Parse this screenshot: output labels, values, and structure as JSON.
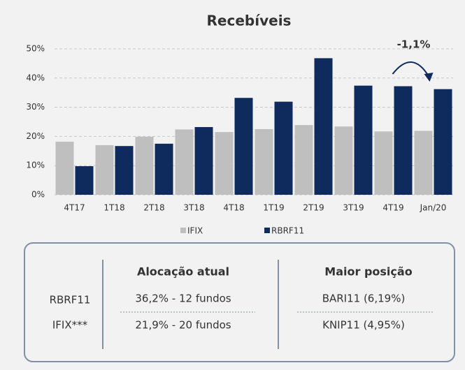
{
  "chart_data": {
    "type": "bar",
    "title": "Recebíveis",
    "categories": [
      "4T17",
      "1T18",
      "2T18",
      "3T18",
      "4T18",
      "1T19",
      "2T19",
      "3T19",
      "4T19",
      "Jan/20"
    ],
    "series": [
      {
        "name": "IFIX",
        "color": "#bfbfbf",
        "values": [
          18.2,
          17,
          19.9,
          22.4,
          21.5,
          22.5,
          23.9,
          23.4,
          21.7,
          21.9
        ]
      },
      {
        "name": "RBRF11",
        "color": "#0f2a5c",
        "values": [
          9.8,
          16.7,
          17.5,
          23.2,
          33.2,
          31.9,
          46.8,
          37.4,
          37.2,
          36.2
        ]
      }
    ],
    "ylim": [
      0,
      50
    ],
    "yticks": [
      {
        "value": 0,
        "label": "0%"
      },
      {
        "value": 10,
        "label": "10%"
      },
      {
        "value": 20,
        "label": "20%"
      },
      {
        "value": 30,
        "label": "30%"
      },
      {
        "value": 40,
        "label": "40%"
      },
      {
        "value": 50,
        "label": "50%"
      }
    ],
    "grid": true,
    "legend": "bottom",
    "annotation": "-1,1%"
  },
  "table": {
    "headers": [
      "Alocação atual",
      "Maior posição"
    ],
    "rows": [
      [
        "RBRF11",
        "36,2% - 12 fundos",
        "BARI11 (6,19%)"
      ],
      [
        "IFIX***",
        "21,9% - 20 fundos",
        "KNIP11 (4,95%)"
      ]
    ]
  }
}
